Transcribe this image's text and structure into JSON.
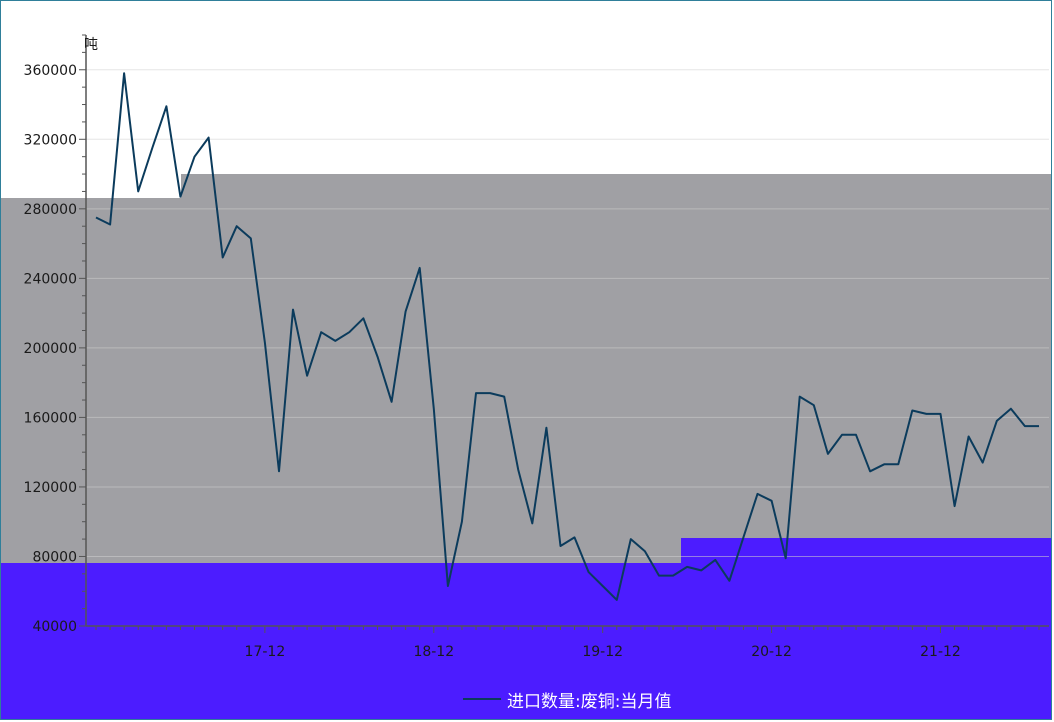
{
  "chart_data": {
    "type": "line",
    "ylabel": "吨",
    "ylim": [
      40000,
      380000
    ],
    "yticks": [
      40000,
      80000,
      120000,
      160000,
      200000,
      240000,
      280000,
      320000,
      360000
    ],
    "ytick_labels": [
      "40000",
      "80000",
      "120000",
      "160000",
      "200000",
      "240000",
      "280000",
      "320000",
      "360000"
    ],
    "xtick_labels": [
      "17-12",
      "18-12",
      "19-12",
      "20-12",
      "21-12"
    ],
    "xtick_index": [
      12,
      24,
      36,
      48,
      60
    ],
    "legend_position": "bottom-center",
    "series": [
      {
        "name": "进口数量:废铜:当月值",
        "color": "#0b3b5c",
        "values": [
          275000,
          271000,
          358000,
          290000,
          315000,
          339000,
          287000,
          310000,
          321000,
          252000,
          270000,
          263000,
          203000,
          129000,
          222000,
          184000,
          209000,
          204000,
          209000,
          217000,
          195000,
          169000,
          221000,
          246000,
          165000,
          63000,
          100000,
          174000,
          174000,
          172000,
          130000,
          99000,
          154000,
          86000,
          91000,
          71000,
          63000,
          55000,
          90000,
          83000,
          69000,
          69000,
          74000,
          72000,
          78000,
          66000,
          91000,
          116000,
          112000,
          79000,
          172000,
          167000,
          139000,
          150000,
          150000,
          129000,
          133000,
          133000,
          164000,
          162000,
          162000,
          109000,
          149000,
          134000,
          158000,
          165000,
          155000,
          155000
        ]
      }
    ]
  },
  "colors": {
    "band_top": "#ffffff",
    "band_middle": "#a0a0a4",
    "band_bottom": "#4c1cff",
    "grid": "#cfcfcf",
    "axis": "#555555"
  }
}
